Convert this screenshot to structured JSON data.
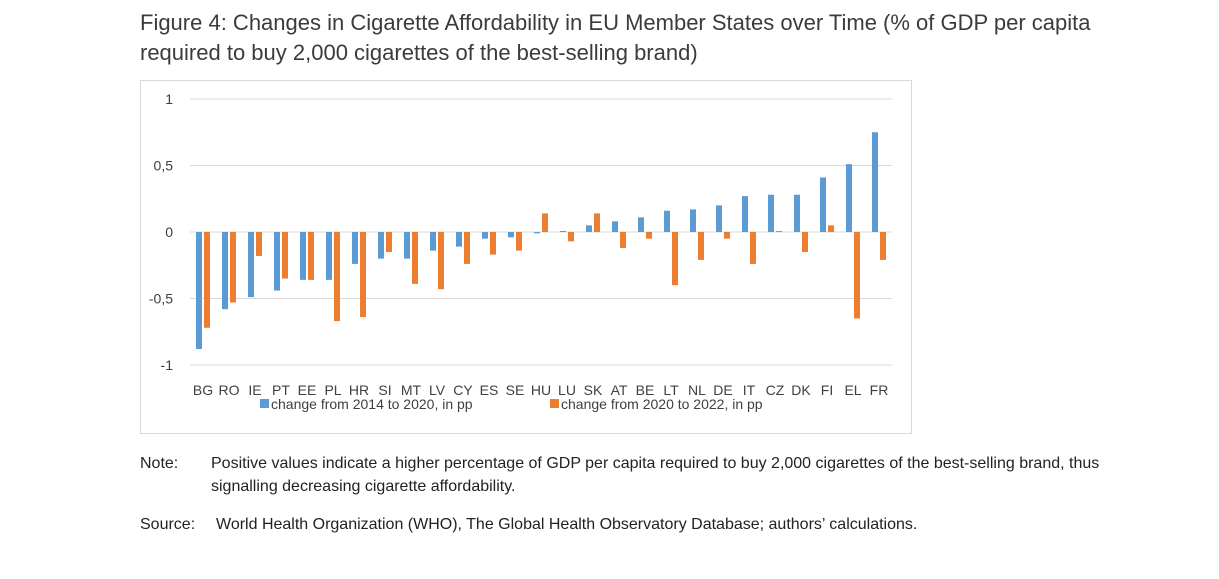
{
  "figure": {
    "title": "Figure 4: Changes in Cigarette Affordability in EU Member States over Time (% of GDP per capita required to buy 2,000 cigarettes of the best-selling brand)",
    "note_label": "Note:",
    "note_text": "Positive values indicate a higher percentage of GDP per capita required to buy 2,000 cigarettes of the best-selling brand, thus signalling decreasing cigarette affordability.",
    "source_label": "Source:",
    "source_text": "World Health Organization (WHO), The Global Health Observatory Database; authors’ calculations."
  },
  "chart_data": {
    "type": "bar",
    "title": "",
    "xlabel": "",
    "ylabel": "",
    "ylim": [
      -1,
      1
    ],
    "yticks": [
      1,
      0.5,
      0,
      -0.5,
      -1
    ],
    "ytick_labels": [
      "1",
      "0,5",
      "0",
      "-0,5",
      "-1"
    ],
    "grid": true,
    "legend_position": "bottom",
    "categories": [
      "BG",
      "RO",
      "IE",
      "PT",
      "EE",
      "PL",
      "HR",
      "SI",
      "MT",
      "LV",
      "CY",
      "ES",
      "SE",
      "HU",
      "LU",
      "SK",
      "AT",
      "BE",
      "LT",
      "NL",
      "DE",
      "IT",
      "CZ",
      "DK",
      "FI",
      "EL",
      "FR"
    ],
    "series": [
      {
        "name": "change from 2014 to 2020, in pp",
        "color": "#5b9bd5",
        "values": [
          -0.88,
          -0.58,
          -0.49,
          -0.44,
          -0.36,
          -0.36,
          -0.24,
          -0.2,
          -0.2,
          -0.14,
          -0.11,
          -0.05,
          -0.04,
          -0.01,
          0.0,
          0.05,
          0.08,
          0.11,
          0.16,
          0.17,
          0.2,
          0.27,
          0.28,
          0.28,
          0.41,
          0.51,
          0.75
        ]
      },
      {
        "name": "change from 2020 to 2022, in pp",
        "color": "#ed7d31",
        "values": [
          -0.72,
          -0.53,
          -0.18,
          -0.35,
          -0.36,
          -0.67,
          -0.64,
          -0.15,
          -0.39,
          -0.43,
          -0.24,
          -0.17,
          -0.14,
          0.14,
          -0.07,
          0.14,
          -0.12,
          -0.05,
          -0.4,
          -0.21,
          -0.05,
          -0.24,
          0.0,
          -0.15,
          0.05,
          -0.65,
          -0.21
        ]
      }
    ]
  }
}
